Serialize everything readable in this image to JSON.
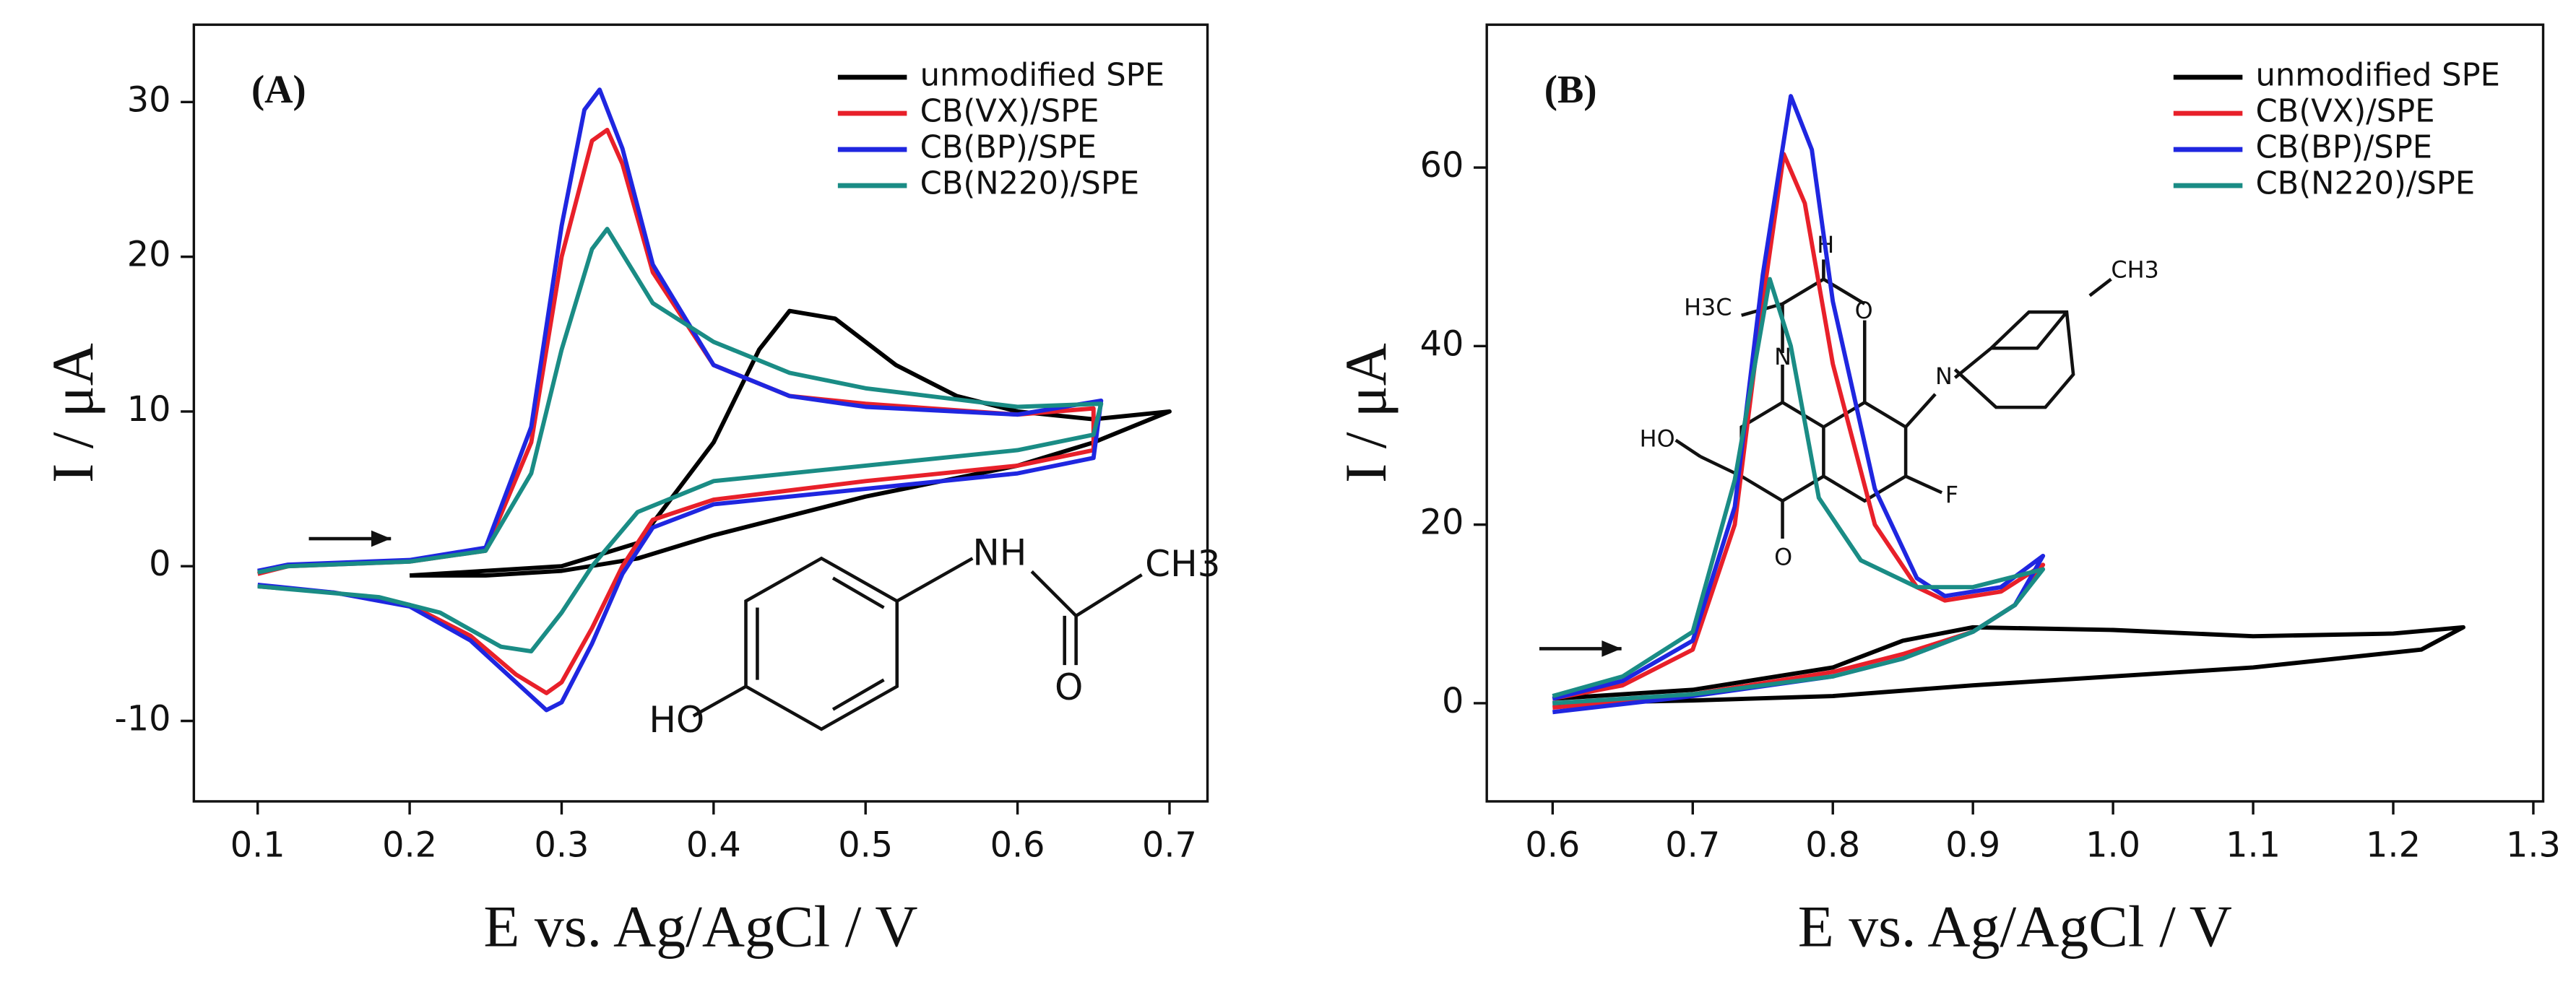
{
  "chart_data": [
    {
      "type": "line",
      "panel_label": "(A)",
      "xlabel": "E vs. Ag/AgCl / V",
      "ylabel": "I / μA",
      "xlim": [
        0.058,
        0.725
      ],
      "xticks": [
        0.1,
        0.2,
        0.3,
        0.4,
        0.5,
        0.6,
        0.7
      ],
      "ylim": [
        -15.2,
        35
      ],
      "yticks": [
        -10,
        0,
        10,
        20,
        30
      ],
      "legend": "upper right",
      "annotations": [
        "HO",
        "NH",
        "O",
        "CH3"
      ],
      "series": [
        {
          "name": "unmodified SPE",
          "color": "#000000",
          "x": [
            0.2,
            0.3,
            0.35,
            0.4,
            0.43,
            0.45,
            0.48,
            0.52,
            0.56,
            0.6,
            0.65,
            0.7,
            0.65,
            0.6,
            0.5,
            0.4,
            0.35,
            0.3,
            0.25,
            0.2
          ],
          "values": [
            -0.6,
            0,
            1.5,
            8,
            14,
            16.5,
            16,
            13,
            11,
            10,
            9.5,
            10,
            8,
            6.5,
            4.5,
            2,
            0.5,
            -0.3,
            -0.6,
            -0.6
          ]
        },
        {
          "name": "CB(VX)/SPE",
          "color": "#e8202a",
          "x": [
            0.1,
            0.12,
            0.2,
            0.25,
            0.28,
            0.3,
            0.32,
            0.33,
            0.34,
            0.36,
            0.4,
            0.45,
            0.5,
            0.6,
            0.65,
            0.65,
            0.6,
            0.5,
            0.4,
            0.36,
            0.34,
            0.32,
            0.3,
            0.29,
            0.27,
            0.24,
            0.2,
            0.15,
            0.1
          ],
          "values": [
            -0.5,
            0,
            0.3,
            1,
            8,
            20,
            27.5,
            28.2,
            26,
            19,
            13,
            11,
            10.5,
            9.8,
            10.2,
            7.5,
            6.5,
            5.5,
            4.3,
            3,
            0,
            -4,
            -7.5,
            -8.2,
            -7,
            -4.5,
            -2.5,
            -1.7,
            -1.3
          ]
        },
        {
          "name": "CB(BP)/SPE",
          "color": "#1f26e0",
          "x": [
            0.1,
            0.12,
            0.2,
            0.25,
            0.28,
            0.3,
            0.315,
            0.325,
            0.34,
            0.36,
            0.4,
            0.45,
            0.5,
            0.6,
            0.655,
            0.65,
            0.6,
            0.5,
            0.4,
            0.36,
            0.34,
            0.32,
            0.3,
            0.29,
            0.27,
            0.24,
            0.2,
            0.15,
            0.1
          ],
          "values": [
            -0.3,
            0.1,
            0.4,
            1.2,
            9,
            22,
            29.5,
            30.8,
            27,
            19.5,
            13,
            11,
            10.3,
            9.8,
            10.7,
            7,
            6,
            5,
            4,
            2.5,
            -0.5,
            -5,
            -8.8,
            -9.3,
            -7.5,
            -4.8,
            -2.6,
            -1.7,
            -1.2
          ]
        },
        {
          "name": "CB(N220)/SPE",
          "color": "#1a8c85",
          "x": [
            0.1,
            0.12,
            0.2,
            0.25,
            0.28,
            0.3,
            0.32,
            0.33,
            0.36,
            0.4,
            0.45,
            0.5,
            0.6,
            0.655,
            0.65,
            0.6,
            0.5,
            0.4,
            0.35,
            0.32,
            0.3,
            0.28,
            0.26,
            0.22,
            0.18,
            0.1
          ],
          "values": [
            -0.4,
            0,
            0.3,
            1,
            6,
            14,
            20.5,
            21.8,
            17,
            14.5,
            12.5,
            11.5,
            10.3,
            10.5,
            8.5,
            7.5,
            6.5,
            5.5,
            3.5,
            0,
            -3,
            -5.5,
            -5.2,
            -3,
            -2,
            -1.3
          ]
        }
      ]
    },
    {
      "type": "line",
      "panel_label": "(B)",
      "xlabel": "E vs. Ag/AgCl / V",
      "ylabel": "I / μA",
      "xlim": [
        0.553,
        1.307
      ],
      "xticks": [
        0.6,
        0.7,
        0.8,
        0.9,
        {
          "value": 1,
          "label": "1.0"
        },
        1.1,
        1.2,
        1.3
      ],
      "ylim": [
        -11,
        76
      ],
      "yticks": [
        0,
        20,
        40,
        60
      ],
      "legend": "upper right",
      "annotations": [
        "H3C",
        "H",
        "O",
        "N",
        "N",
        "CH3",
        "HO",
        "O",
        "F"
      ],
      "series": [
        {
          "name": "unmodified SPE",
          "color": "#000000",
          "x": [
            0.6,
            0.7,
            0.8,
            0.85,
            0.9,
            1.0,
            1.1,
            1.2,
            1.25,
            1.22,
            1.1,
            1.0,
            0.9,
            0.8,
            0.7,
            0.6
          ],
          "values": [
            0.5,
            1.5,
            4,
            7,
            8.5,
            8.2,
            7.5,
            7.8,
            8.5,
            6,
            4,
            3,
            2,
            0.8,
            0.3,
            0
          ]
        },
        {
          "name": "CB(VX)/SPE",
          "color": "#e8202a",
          "x": [
            0.6,
            0.65,
            0.7,
            0.73,
            0.75,
            0.765,
            0.78,
            0.8,
            0.83,
            0.86,
            0.88,
            0.92,
            0.95,
            0.93,
            0.9,
            0.85,
            0.8,
            0.7,
            0.6
          ],
          "values": [
            0.5,
            2,
            6,
            20,
            45,
            61.5,
            56,
            38,
            20,
            13,
            11.5,
            12.5,
            15.5,
            11,
            8,
            5.5,
            3.5,
            1,
            -0.5
          ]
        },
        {
          "name": "CB(BP)/SPE",
          "color": "#1f26e0",
          "x": [
            0.6,
            0.65,
            0.7,
            0.73,
            0.75,
            0.77,
            0.785,
            0.8,
            0.83,
            0.86,
            0.88,
            0.92,
            0.95,
            0.93,
            0.9,
            0.85,
            0.8,
            0.7,
            0.6
          ],
          "values": [
            0.5,
            2.5,
            7,
            22,
            48,
            68,
            62,
            45,
            24,
            14,
            12,
            13,
            16.5,
            11,
            8,
            5,
            3,
            0.8,
            -1
          ]
        },
        {
          "name": "CB(N220)/SPE",
          "color": "#1a8c85",
          "x": [
            0.6,
            0.65,
            0.7,
            0.73,
            0.755,
            0.77,
            0.79,
            0.82,
            0.86,
            0.9,
            0.95,
            0.93,
            0.9,
            0.85,
            0.8,
            0.7,
            0.6
          ],
          "values": [
            0.8,
            3,
            8,
            25,
            47.5,
            40,
            23,
            16,
            13,
            13,
            15,
            11,
            8,
            5,
            3,
            1,
            0
          ]
        }
      ]
    }
  ]
}
